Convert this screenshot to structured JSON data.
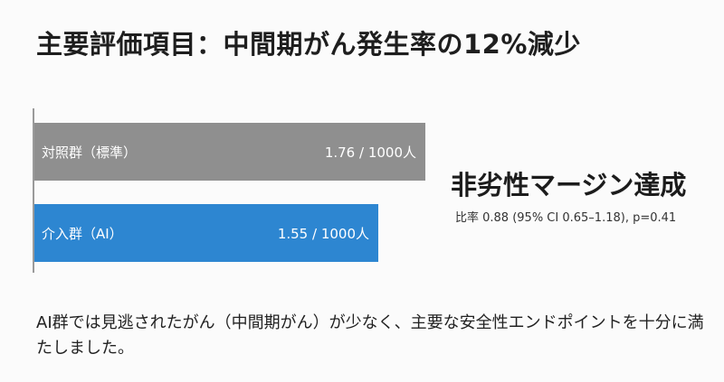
{
  "title": "主要評価項目：中間期がん発生率の12%減少",
  "chart_data": {
    "type": "bar",
    "orientation": "horizontal",
    "categories": [
      "対照群（標準）",
      "介入群（AI）"
    ],
    "values": [
      1.76,
      1.55
    ],
    "value_labels": [
      "1.76 / 1000人",
      "1.55 / 1000人"
    ],
    "colors": [
      "#8f8f8f",
      "#2d86d1"
    ],
    "xlim": [
      0,
      1.76
    ]
  },
  "callout": {
    "title": "非劣性マージン達成",
    "subtitle": "比率 0.88 (95% CI 0.65–1.18), p=0.41"
  },
  "summary": "AI群では見逃されたがん（中間期がん）が少なく、主要な安全性エンドポイントを十分に満たしました。"
}
